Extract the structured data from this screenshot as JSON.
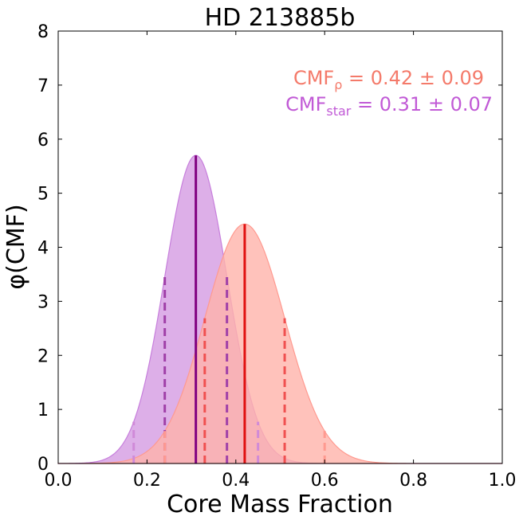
{
  "chart_data": {
    "type": "area",
    "title": "HD 213885b",
    "xlabel": "Core Mass Fraction",
    "ylabel": "φ(CMF)",
    "xlim": [
      0.0,
      1.0
    ],
    "ylim": [
      0,
      8
    ],
    "x_ticks": [
      0.0,
      0.2,
      0.4,
      0.6,
      0.8,
      1.0
    ],
    "x_tick_labels": [
      "0.0",
      "0.2",
      "0.4",
      "0.6",
      "0.8",
      "1.0"
    ],
    "y_ticks": [
      0,
      1,
      2,
      3,
      4,
      5,
      6,
      7,
      8
    ],
    "y_tick_labels": [
      "0",
      "1",
      "2",
      "3",
      "4",
      "5",
      "6",
      "7",
      "8"
    ],
    "grid": false,
    "legend_position": "top-right",
    "series": [
      {
        "name": "CMF_star",
        "label_main": "CMF",
        "label_sub": "star",
        "label_rest": " = 0.31 ± 0.07",
        "mean": 0.31,
        "sigma": 0.07,
        "peak": 5.7,
        "fill_color": "#d9a6e6",
        "edge_color": "#c77fdc",
        "line_color": "#800080",
        "dash_color": "#a040a8",
        "dash_light_color": "#d08ad8",
        "text_color": "#c15ad6",
        "one_sigma": [
          0.24,
          0.38
        ],
        "two_sigma": [
          0.17,
          0.45
        ]
      },
      {
        "name": "CMF_rho",
        "label_main": "CMF",
        "label_sub": "ρ",
        "label_rest": " = 0.42 ± 0.09",
        "mean": 0.42,
        "sigma": 0.09,
        "peak": 4.43,
        "fill_color": "#ffb3aa",
        "edge_color": "#ff9a90",
        "line_color": "#e01010",
        "dash_color": "#f05050",
        "dash_light_color": "#ff9a90",
        "text_color": "#f47a6a",
        "one_sigma": [
          0.33,
          0.51
        ],
        "two_sigma": [
          0.24,
          0.6
        ]
      }
    ]
  }
}
